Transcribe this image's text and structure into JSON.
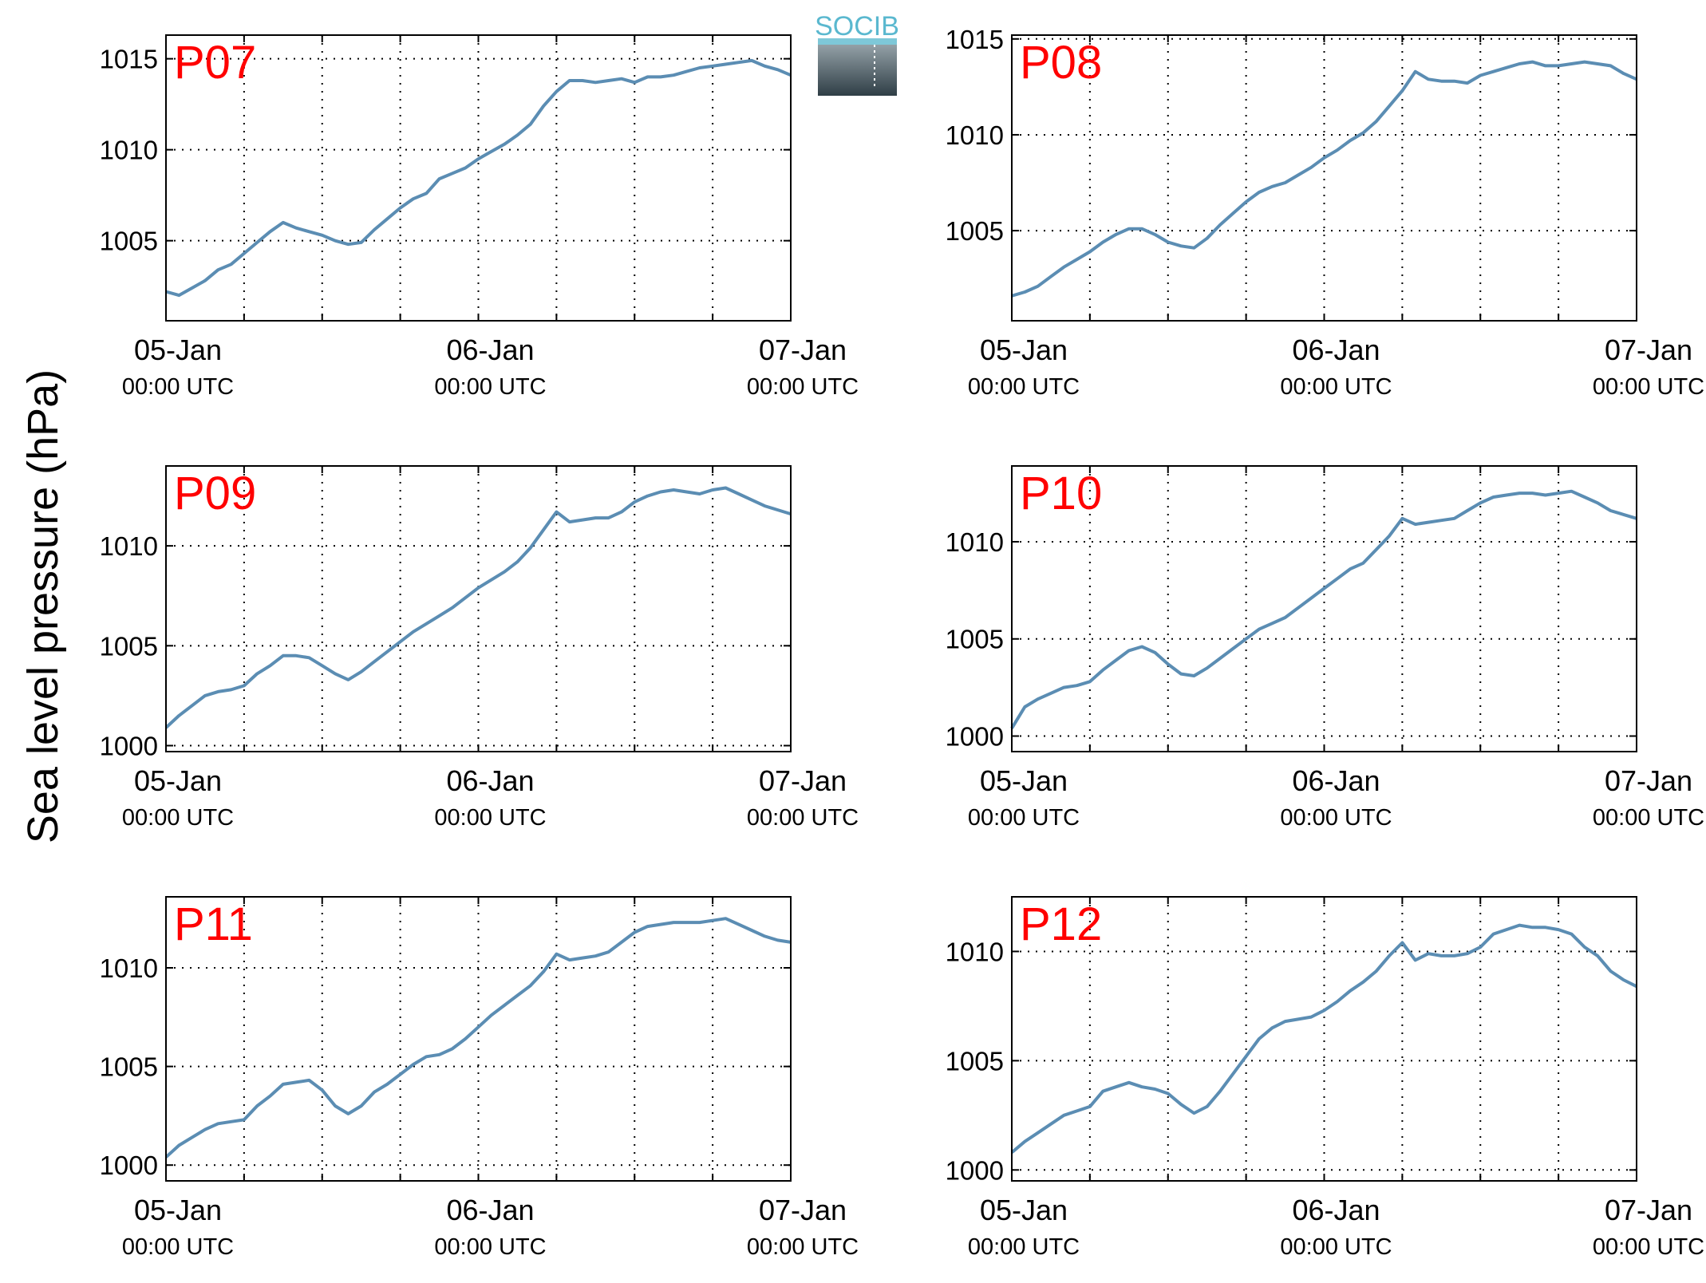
{
  "figure": {
    "ylabel": "Sea level pressure (hPa)",
    "logo": {
      "text": "SOCIB",
      "name": "socib-logo"
    },
    "colors": {
      "line": "#5b8db3",
      "panel_label": "#ff0000",
      "axis": "#000000",
      "grid": "#000000"
    }
  },
  "chart_data": [
    {
      "type": "line",
      "title": "P07",
      "x_ticks": [
        "05-Jan",
        "06-Jan",
        "07-Jan"
      ],
      "x_ticks_sub": [
        "00:00 UTC",
        "00:00 UTC",
        "00:00 UTC"
      ],
      "xlim": [
        0,
        48
      ],
      "ylim": [
        1000.6,
        1016.3
      ],
      "y_ticks": [
        1005,
        1010,
        1015
      ],
      "grid": true,
      "series": [
        {
          "x": [
            0,
            1,
            2,
            3,
            4,
            5,
            6,
            7,
            8,
            9,
            10,
            11,
            12,
            13,
            14,
            15,
            16,
            17,
            18,
            19,
            20,
            21,
            22,
            23,
            24,
            25,
            26,
            27,
            28,
            29,
            30,
            31,
            32,
            33,
            34,
            35,
            36,
            37,
            38,
            39,
            40,
            41,
            42,
            43,
            44,
            45,
            46,
            47,
            48
          ],
          "y": [
            1002.2,
            1002.0,
            1002.4,
            1002.8,
            1003.4,
            1003.7,
            1004.3,
            1004.9,
            1005.5,
            1006.0,
            1005.7,
            1005.5,
            1005.3,
            1005.0,
            1004.8,
            1004.9,
            1005.6,
            1006.2,
            1006.8,
            1007.3,
            1007.6,
            1008.4,
            1008.7,
            1009.0,
            1009.5,
            1009.9,
            1010.3,
            1010.8,
            1011.4,
            1012.4,
            1013.2,
            1013.8,
            1013.8,
            1013.7,
            1013.8,
            1013.9,
            1013.7,
            1014.0,
            1014.0,
            1014.1,
            1014.3,
            1014.5,
            1014.6,
            1014.7,
            1014.8,
            1014.9,
            1014.6,
            1014.4,
            1014.1
          ]
        }
      ]
    },
    {
      "type": "line",
      "title": "P08",
      "x_ticks": [
        "05-Jan",
        "06-Jan",
        "07-Jan"
      ],
      "x_ticks_sub": [
        "00:00 UTC",
        "00:00 UTC",
        "00:00 UTC"
      ],
      "xlim": [
        0,
        48
      ],
      "ylim": [
        1000.3,
        1015.2
      ],
      "y_ticks": [
        1005,
        1010,
        1015
      ],
      "grid": true,
      "series": [
        {
          "x": [
            0,
            1,
            2,
            3,
            4,
            5,
            6,
            7,
            8,
            9,
            10,
            11,
            12,
            13,
            14,
            15,
            16,
            17,
            18,
            19,
            20,
            21,
            22,
            23,
            24,
            25,
            26,
            27,
            28,
            29,
            30,
            31,
            32,
            33,
            34,
            35,
            36,
            37,
            38,
            39,
            40,
            41,
            42,
            43,
            44,
            45,
            46,
            47,
            48
          ],
          "y": [
            1001.6,
            1001.8,
            1002.1,
            1002.6,
            1003.1,
            1003.5,
            1003.9,
            1004.4,
            1004.8,
            1005.1,
            1005.1,
            1004.8,
            1004.4,
            1004.2,
            1004.1,
            1004.6,
            1005.3,
            1005.9,
            1006.5,
            1007.0,
            1007.3,
            1007.5,
            1007.9,
            1008.3,
            1008.8,
            1009.2,
            1009.7,
            1010.1,
            1010.7,
            1011.5,
            1012.3,
            1013.3,
            1012.9,
            1012.8,
            1012.8,
            1012.7,
            1013.1,
            1013.3,
            1013.5,
            1013.7,
            1013.8,
            1013.6,
            1013.6,
            1013.7,
            1013.8,
            1013.7,
            1013.6,
            1013.2,
            1012.9
          ]
        }
      ]
    },
    {
      "type": "line",
      "title": "P09",
      "x_ticks": [
        "05-Jan",
        "06-Jan",
        "07-Jan"
      ],
      "x_ticks_sub": [
        "00:00 UTC",
        "00:00 UTC",
        "00:00 UTC"
      ],
      "xlim": [
        0,
        48
      ],
      "ylim": [
        999.7,
        1014.0
      ],
      "y_ticks": [
        1000,
        1005,
        1010
      ],
      "grid": true,
      "series": [
        {
          "x": [
            0,
            1,
            2,
            3,
            4,
            5,
            6,
            7,
            8,
            9,
            10,
            11,
            12,
            13,
            14,
            15,
            16,
            17,
            18,
            19,
            20,
            21,
            22,
            23,
            24,
            25,
            26,
            27,
            28,
            29,
            30,
            31,
            32,
            33,
            34,
            35,
            36,
            37,
            38,
            39,
            40,
            41,
            42,
            43,
            44,
            45,
            46,
            47,
            48
          ],
          "y": [
            1000.9,
            1001.5,
            1002.0,
            1002.5,
            1002.7,
            1002.8,
            1003.0,
            1003.6,
            1004.0,
            1004.5,
            1004.5,
            1004.4,
            1004.0,
            1003.6,
            1003.3,
            1003.7,
            1004.2,
            1004.7,
            1005.2,
            1005.7,
            1006.1,
            1006.5,
            1006.9,
            1007.4,
            1007.9,
            1008.3,
            1008.7,
            1009.2,
            1009.9,
            1010.8,
            1011.7,
            1011.2,
            1011.3,
            1011.4,
            1011.4,
            1011.7,
            1012.2,
            1012.5,
            1012.7,
            1012.8,
            1012.7,
            1012.6,
            1012.8,
            1012.9,
            1012.6,
            1012.3,
            1012.0,
            1011.8,
            1011.6
          ]
        }
      ]
    },
    {
      "type": "line",
      "title": "P10",
      "x_ticks": [
        "05-Jan",
        "06-Jan",
        "07-Jan"
      ],
      "x_ticks_sub": [
        "00:00 UTC",
        "00:00 UTC",
        "00:00 UTC"
      ],
      "xlim": [
        0,
        48
      ],
      "ylim": [
        999.2,
        1013.9
      ],
      "y_ticks": [
        1000,
        1005,
        1010
      ],
      "grid": true,
      "series": [
        {
          "x": [
            0,
            1,
            2,
            3,
            4,
            5,
            6,
            7,
            8,
            9,
            10,
            11,
            12,
            13,
            14,
            15,
            16,
            17,
            18,
            19,
            20,
            21,
            22,
            23,
            24,
            25,
            26,
            27,
            28,
            29,
            30,
            31,
            32,
            33,
            34,
            35,
            36,
            37,
            38,
            39,
            40,
            41,
            42,
            43,
            44,
            45,
            46,
            47,
            48
          ],
          "y": [
            1000.4,
            1001.5,
            1001.9,
            1002.2,
            1002.5,
            1002.6,
            1002.8,
            1003.4,
            1003.9,
            1004.4,
            1004.6,
            1004.3,
            1003.7,
            1003.2,
            1003.1,
            1003.5,
            1004.0,
            1004.5,
            1005.0,
            1005.5,
            1005.8,
            1006.1,
            1006.6,
            1007.1,
            1007.6,
            1008.1,
            1008.6,
            1008.9,
            1009.6,
            1010.3,
            1011.2,
            1010.9,
            1011.0,
            1011.1,
            1011.2,
            1011.6,
            1012.0,
            1012.3,
            1012.4,
            1012.5,
            1012.5,
            1012.4,
            1012.5,
            1012.6,
            1012.3,
            1012.0,
            1011.6,
            1011.4,
            1011.2
          ]
        }
      ]
    },
    {
      "type": "line",
      "title": "P11",
      "x_ticks": [
        "05-Jan",
        "06-Jan",
        "07-Jan"
      ],
      "x_ticks_sub": [
        "00:00 UTC",
        "00:00 UTC",
        "00:00 UTC"
      ],
      "xlim": [
        0,
        48
      ],
      "ylim": [
        999.2,
        1013.6
      ],
      "y_ticks": [
        1000,
        1005,
        1010
      ],
      "grid": true,
      "series": [
        {
          "x": [
            0,
            1,
            2,
            3,
            4,
            5,
            6,
            7,
            8,
            9,
            10,
            11,
            12,
            13,
            14,
            15,
            16,
            17,
            18,
            19,
            20,
            21,
            22,
            23,
            24,
            25,
            26,
            27,
            28,
            29,
            30,
            31,
            32,
            33,
            34,
            35,
            36,
            37,
            38,
            39,
            40,
            41,
            42,
            43,
            44,
            45,
            46,
            47,
            48
          ],
          "y": [
            1000.4,
            1001.0,
            1001.4,
            1001.8,
            1002.1,
            1002.2,
            1002.3,
            1003.0,
            1003.5,
            1004.1,
            1004.2,
            1004.3,
            1003.8,
            1003.0,
            1002.6,
            1003.0,
            1003.7,
            1004.1,
            1004.6,
            1005.1,
            1005.5,
            1005.6,
            1005.9,
            1006.4,
            1007.0,
            1007.6,
            1008.1,
            1008.6,
            1009.1,
            1009.8,
            1010.7,
            1010.4,
            1010.5,
            1010.6,
            1010.8,
            1011.3,
            1011.8,
            1012.1,
            1012.2,
            1012.3,
            1012.3,
            1012.3,
            1012.4,
            1012.5,
            1012.2,
            1011.9,
            1011.6,
            1011.4,
            1011.3
          ]
        }
      ]
    },
    {
      "type": "line",
      "title": "P12",
      "x_ticks": [
        "05-Jan",
        "06-Jan",
        "07-Jan"
      ],
      "x_ticks_sub": [
        "00:00 UTC",
        "00:00 UTC",
        "00:00 UTC"
      ],
      "xlim": [
        0,
        48
      ],
      "ylim": [
        999.5,
        1012.5
      ],
      "y_ticks": [
        1000,
        1005,
        1010
      ],
      "grid": true,
      "series": [
        {
          "x": [
            0,
            1,
            2,
            3,
            4,
            5,
            6,
            7,
            8,
            9,
            10,
            11,
            12,
            13,
            14,
            15,
            16,
            17,
            18,
            19,
            20,
            21,
            22,
            23,
            24,
            25,
            26,
            27,
            28,
            29,
            30,
            31,
            32,
            33,
            34,
            35,
            36,
            37,
            38,
            39,
            40,
            41,
            42,
            43,
            44,
            45,
            46,
            47,
            48
          ],
          "y": [
            1000.8,
            1001.3,
            1001.7,
            1002.1,
            1002.5,
            1002.7,
            1002.9,
            1003.6,
            1003.8,
            1004.0,
            1003.8,
            1003.7,
            1003.5,
            1003.0,
            1002.6,
            1002.9,
            1003.6,
            1004.4,
            1005.2,
            1006.0,
            1006.5,
            1006.8,
            1006.9,
            1007.0,
            1007.3,
            1007.7,
            1008.2,
            1008.6,
            1009.1,
            1009.8,
            1010.4,
            1009.6,
            1009.9,
            1009.8,
            1009.8,
            1009.9,
            1010.2,
            1010.8,
            1011.0,
            1011.2,
            1011.1,
            1011.1,
            1011.0,
            1010.8,
            1010.2,
            1009.8,
            1009.1,
            1008.7,
            1008.4
          ]
        }
      ]
    }
  ]
}
